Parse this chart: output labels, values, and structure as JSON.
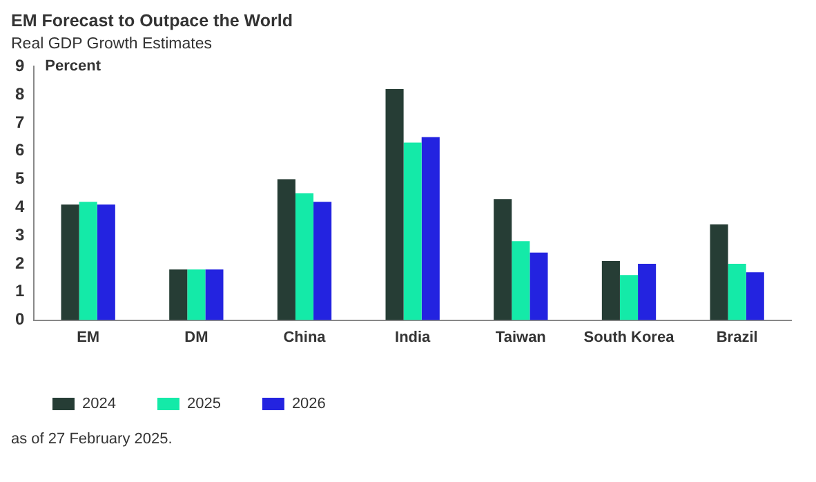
{
  "chart_data": {
    "type": "bar",
    "title": "EM Forecast to Outpace the World",
    "subtitle": "Real GDP Growth Estimates",
    "ylabel": "Percent",
    "categories": [
      "EM",
      "DM",
      "China",
      "India",
      "Taiwan",
      "South Korea",
      "Brazil"
    ],
    "series": [
      {
        "name": "2024",
        "color": "#263d35",
        "values": [
          4.1,
          1.8,
          5.0,
          8.2,
          4.3,
          2.1,
          3.4
        ]
      },
      {
        "name": "2025",
        "color": "#14eaa8",
        "values": [
          4.2,
          1.8,
          4.5,
          6.3,
          2.8,
          1.6,
          2.0
        ]
      },
      {
        "name": "2026",
        "color": "#2323e0",
        "values": [
          4.1,
          1.8,
          4.2,
          6.5,
          2.4,
          2.0,
          1.7
        ]
      }
    ],
    "ylim": [
      0,
      9
    ],
    "yticks": [
      0,
      1,
      2,
      3,
      4,
      5,
      6,
      7,
      8,
      9
    ],
    "grid": false,
    "legend": "bottom left",
    "annotations": [
      "as of 27 February 2025."
    ]
  }
}
